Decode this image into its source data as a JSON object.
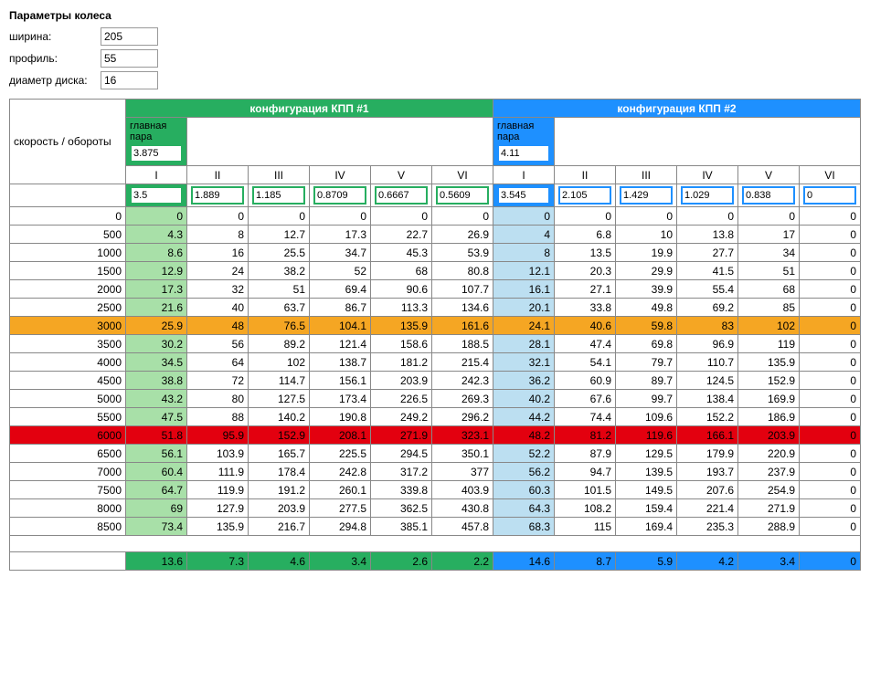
{
  "params": {
    "title": "Параметры колеса",
    "width_label": "ширина:",
    "width_value": "205",
    "profile_label": "профиль:",
    "profile_value": "55",
    "diameter_label": "диаметр диска:",
    "diameter_value": "16"
  },
  "rpm_speed_label": "скорость / обороты",
  "config1": {
    "title": "конфигурация КПП #1",
    "main_pair_label": "главная пара",
    "main_pair_value": "3.875",
    "gears_roman": [
      "I",
      "II",
      "III",
      "IV",
      "V",
      "VI"
    ],
    "gears_values": [
      "3.5",
      "1.889",
      "1.185",
      "0.8709",
      "0.6667",
      "0.5609"
    ]
  },
  "config2": {
    "title": "конфигурация КПП #2",
    "main_pair_label": "главная пара",
    "main_pair_value": "4.11",
    "gears_roman": [
      "I",
      "II",
      "III",
      "IV",
      "V",
      "VI"
    ],
    "gears_values": [
      "3.545",
      "2.105",
      "1.429",
      "1.029",
      "0.838",
      "0"
    ]
  },
  "rows": [
    {
      "rpm": "0",
      "c1": [
        "0",
        "0",
        "0",
        "0",
        "0",
        "0"
      ],
      "c2": [
        "0",
        "0",
        "0",
        "0",
        "0",
        "0"
      ]
    },
    {
      "rpm": "500",
      "c1": [
        "4.3",
        "8",
        "12.7",
        "17.3",
        "22.7",
        "26.9"
      ],
      "c2": [
        "4",
        "6.8",
        "10",
        "13.8",
        "17",
        "0"
      ]
    },
    {
      "rpm": "1000",
      "c1": [
        "8.6",
        "16",
        "25.5",
        "34.7",
        "45.3",
        "53.9"
      ],
      "c2": [
        "8",
        "13.5",
        "19.9",
        "27.7",
        "34",
        "0"
      ]
    },
    {
      "rpm": "1500",
      "c1": [
        "12.9",
        "24",
        "38.2",
        "52",
        "68",
        "80.8"
      ],
      "c2": [
        "12.1",
        "20.3",
        "29.9",
        "41.5",
        "51",
        "0"
      ]
    },
    {
      "rpm": "2000",
      "c1": [
        "17.3",
        "32",
        "51",
        "69.4",
        "90.6",
        "107.7"
      ],
      "c2": [
        "16.1",
        "27.1",
        "39.9",
        "55.4",
        "68",
        "0"
      ]
    },
    {
      "rpm": "2500",
      "c1": [
        "21.6",
        "40",
        "63.7",
        "86.7",
        "113.3",
        "134.6"
      ],
      "c2": [
        "20.1",
        "33.8",
        "49.8",
        "69.2",
        "85",
        "0"
      ]
    },
    {
      "rpm": "3000",
      "c1": [
        "25.9",
        "48",
        "76.5",
        "104.1",
        "135.9",
        "161.6"
      ],
      "c2": [
        "24.1",
        "40.6",
        "59.8",
        "83",
        "102",
        "0"
      ],
      "hl": "orange"
    },
    {
      "rpm": "3500",
      "c1": [
        "30.2",
        "56",
        "89.2",
        "121.4",
        "158.6",
        "188.5"
      ],
      "c2": [
        "28.1",
        "47.4",
        "69.8",
        "96.9",
        "119",
        "0"
      ]
    },
    {
      "rpm": "4000",
      "c1": [
        "34.5",
        "64",
        "102",
        "138.7",
        "181.2",
        "215.4"
      ],
      "c2": [
        "32.1",
        "54.1",
        "79.7",
        "110.7",
        "135.9",
        "0"
      ]
    },
    {
      "rpm": "4500",
      "c1": [
        "38.8",
        "72",
        "114.7",
        "156.1",
        "203.9",
        "242.3"
      ],
      "c2": [
        "36.2",
        "60.9",
        "89.7",
        "124.5",
        "152.9",
        "0"
      ]
    },
    {
      "rpm": "5000",
      "c1": [
        "43.2",
        "80",
        "127.5",
        "173.4",
        "226.5",
        "269.3"
      ],
      "c2": [
        "40.2",
        "67.6",
        "99.7",
        "138.4",
        "169.9",
        "0"
      ]
    },
    {
      "rpm": "5500",
      "c1": [
        "47.5",
        "88",
        "140.2",
        "190.8",
        "249.2",
        "296.2"
      ],
      "c2": [
        "44.2",
        "74.4",
        "109.6",
        "152.2",
        "186.9",
        "0"
      ]
    },
    {
      "rpm": "6000",
      "c1": [
        "51.8",
        "95.9",
        "152.9",
        "208.1",
        "271.9",
        "323.1"
      ],
      "c2": [
        "48.2",
        "81.2",
        "119.6",
        "166.1",
        "203.9",
        "0"
      ],
      "hl": "red"
    },
    {
      "rpm": "6500",
      "c1": [
        "56.1",
        "103.9",
        "165.7",
        "225.5",
        "294.5",
        "350.1"
      ],
      "c2": [
        "52.2",
        "87.9",
        "129.5",
        "179.9",
        "220.9",
        "0"
      ]
    },
    {
      "rpm": "7000",
      "c1": [
        "60.4",
        "111.9",
        "178.4",
        "242.8",
        "317.2",
        "377"
      ],
      "c2": [
        "56.2",
        "94.7",
        "139.5",
        "193.7",
        "237.9",
        "0"
      ]
    },
    {
      "rpm": "7500",
      "c1": [
        "64.7",
        "119.9",
        "191.2",
        "260.1",
        "339.8",
        "403.9"
      ],
      "c2": [
        "60.3",
        "101.5",
        "149.5",
        "207.6",
        "254.9",
        "0"
      ]
    },
    {
      "rpm": "8000",
      "c1": [
        "69",
        "127.9",
        "203.9",
        "277.5",
        "362.5",
        "430.8"
      ],
      "c2": [
        "64.3",
        "108.2",
        "159.4",
        "221.4",
        "271.9",
        "0"
      ]
    },
    {
      "rpm": "8500",
      "c1": [
        "73.4",
        "135.9",
        "216.7",
        "294.8",
        "385.1",
        "457.8"
      ],
      "c2": [
        "68.3",
        "115",
        "169.4",
        "235.3",
        "288.9",
        "0"
      ]
    }
  ],
  "footer": {
    "c1": [
      "13.6",
      "7.3",
      "4.6",
      "3.4",
      "2.6",
      "2.2"
    ],
    "c2": [
      "14.6",
      "8.7",
      "5.9",
      "4.2",
      "3.4",
      "0"
    ]
  },
  "colors": {
    "config1": "#27ae60",
    "config2": "#1e90ff",
    "light_green": "#a8e0a8",
    "light_blue": "#bcdff1",
    "orange": "#f5a623",
    "red": "#e3000f"
  }
}
